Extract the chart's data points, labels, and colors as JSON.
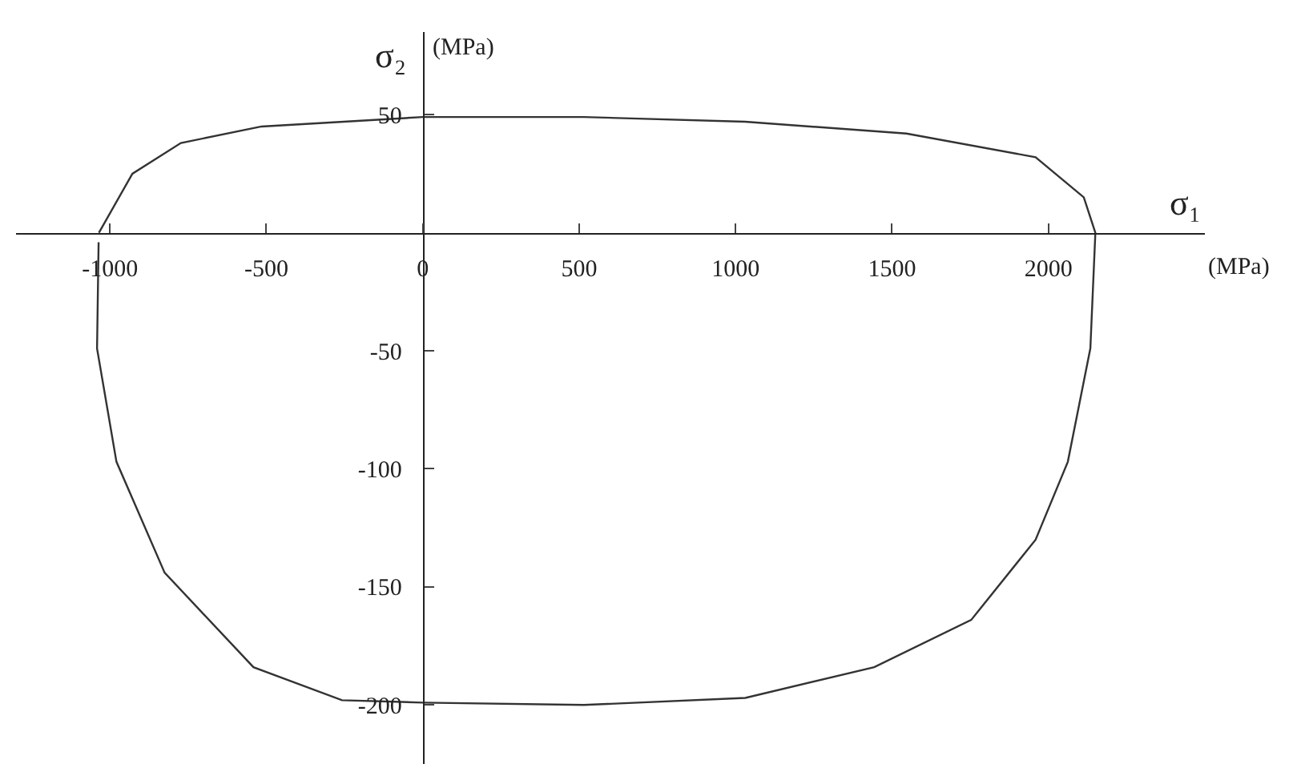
{
  "chart_data": {
    "type": "line",
    "xlabel": "σ₁",
    "ylabel": "σ₂",
    "annotations": [
      "(MPa)",
      "(MPa)"
    ],
    "series": [
      {
        "color": "#333333",
        "x": [
          -1035,
          -928,
          -773,
          -515,
          0,
          515,
          1031,
          1546,
          1959,
          2113,
          2150,
          2134,
          2062,
          1959,
          1753,
          1443,
          1031,
          515,
          0,
          -258,
          -541,
          -825,
          -979,
          -1041,
          -1036
        ],
        "values": [
          0,
          25,
          38,
          45,
          49,
          49,
          47,
          42,
          32,
          15,
          0,
          -49,
          -97,
          -130,
          -164,
          -184,
          -197,
          -200,
          -199,
          -198,
          -184,
          -144,
          -97,
          -49,
          -4
        ]
      }
    ],
    "xlim": [
      -1300,
      2500
    ],
    "ylim": [
      -225,
      85
    ],
    "xticks": [
      -1000,
      -500,
      0,
      500,
      1000,
      1500,
      2000
    ],
    "yticks": [
      50,
      -50,
      -100,
      -150,
      -200
    ],
    "legend": false,
    "marker": "none",
    "line_style": "solid"
  }
}
